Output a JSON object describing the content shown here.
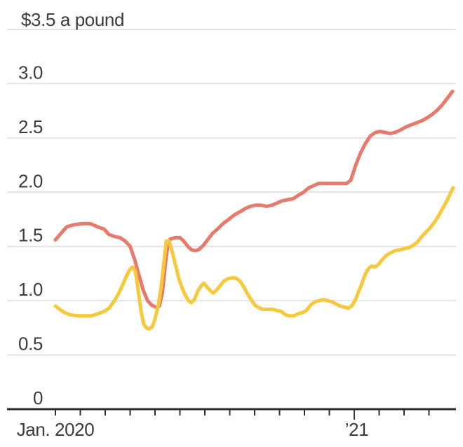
{
  "page": {
    "background": "#FFFFFF"
  },
  "colors": {
    "red_line": "#E8796B",
    "yellow_line": "#F6C93C",
    "gridline": "#E4E4E4",
    "axis": "#2D2D2D",
    "text": "#3C3C3C"
  },
  "chart_data": {
    "type": "line",
    "unit_label": "$3.5 a pound",
    "y_axis": {
      "top_label": "$3.5 a pound",
      "grid_values": [
        3.5,
        3.0,
        2.5,
        2.0,
        1.5,
        1.0,
        0.5
      ],
      "tick_values": [
        3.0,
        2.5,
        2.0,
        1.5,
        1.0,
        0.5,
        0
      ],
      "tick_labels": [
        "3.0",
        "2.5",
        "2.0",
        "1.5",
        "1.0",
        "0.5",
        "0"
      ],
      "ylim": [
        0,
        3.5
      ]
    },
    "x_axis": {
      "unit": "months since Jan. 2020",
      "tick_months": [
        0,
        1,
        2,
        3,
        4,
        5,
        6,
        7,
        8,
        9,
        10,
        11,
        12,
        13,
        14,
        15
      ],
      "major_tick_month": 12,
      "labels": [
        {
          "text": "Jan. 2020",
          "month": 0
        },
        {
          "text": "’21",
          "month": 12.1
        }
      ],
      "xlim_months": [
        0,
        16.1
      ]
    },
    "grid": true,
    "legend": "none",
    "series": [
      {
        "name": "Red line",
        "color": "#E8796B",
        "points": [
          [
            0.0,
            1.56
          ],
          [
            0.45,
            1.68
          ],
          [
            0.75,
            1.7
          ],
          [
            1.1,
            1.71
          ],
          [
            1.4,
            1.71
          ],
          [
            1.7,
            1.68
          ],
          [
            1.95,
            1.66
          ],
          [
            2.15,
            1.61
          ],
          [
            2.4,
            1.59
          ],
          [
            2.6,
            1.58
          ],
          [
            2.8,
            1.55
          ],
          [
            3.0,
            1.5
          ],
          [
            3.18,
            1.38
          ],
          [
            3.35,
            1.24
          ],
          [
            3.52,
            1.1
          ],
          [
            3.7,
            1.0
          ],
          [
            3.86,
            0.96
          ],
          [
            4.03,
            0.94
          ],
          [
            4.17,
            0.95
          ],
          [
            4.3,
            1.08
          ],
          [
            4.42,
            1.35
          ],
          [
            4.52,
            1.52
          ],
          [
            4.62,
            1.57
          ],
          [
            4.82,
            1.58
          ],
          [
            5.0,
            1.58
          ],
          [
            5.15,
            1.55
          ],
          [
            5.32,
            1.5
          ],
          [
            5.46,
            1.47
          ],
          [
            5.61,
            1.46
          ],
          [
            5.75,
            1.47
          ],
          [
            5.94,
            1.51
          ],
          [
            6.14,
            1.57
          ],
          [
            6.31,
            1.62
          ],
          [
            6.51,
            1.66
          ],
          [
            6.73,
            1.71
          ],
          [
            6.96,
            1.75
          ],
          [
            7.18,
            1.79
          ],
          [
            7.41,
            1.82
          ],
          [
            7.63,
            1.85
          ],
          [
            7.83,
            1.87
          ],
          [
            8.03,
            1.88
          ],
          [
            8.25,
            1.88
          ],
          [
            8.48,
            1.87
          ],
          [
            8.7,
            1.88
          ],
          [
            8.9,
            1.9
          ],
          [
            9.1,
            1.92
          ],
          [
            9.32,
            1.93
          ],
          [
            9.55,
            1.94
          ],
          [
            9.75,
            1.97
          ],
          [
            9.97,
            2.0
          ],
          [
            10.17,
            2.04
          ],
          [
            10.37,
            2.06
          ],
          [
            10.56,
            2.08
          ],
          [
            10.8,
            2.08
          ],
          [
            11.0,
            2.08
          ],
          [
            11.24,
            2.08
          ],
          [
            11.46,
            2.08
          ],
          [
            11.69,
            2.08
          ],
          [
            11.86,
            2.11
          ],
          [
            12.06,
            2.25
          ],
          [
            12.25,
            2.36
          ],
          [
            12.45,
            2.45
          ],
          [
            12.65,
            2.52
          ],
          [
            12.85,
            2.55
          ],
          [
            13.04,
            2.56
          ],
          [
            13.24,
            2.55
          ],
          [
            13.44,
            2.54
          ],
          [
            13.63,
            2.55
          ],
          [
            13.83,
            2.57
          ],
          [
            14.06,
            2.6
          ],
          [
            14.28,
            2.62
          ],
          [
            14.51,
            2.64
          ],
          [
            14.73,
            2.66
          ],
          [
            14.96,
            2.69
          ],
          [
            15.15,
            2.72
          ],
          [
            15.35,
            2.76
          ],
          [
            15.55,
            2.81
          ],
          [
            15.75,
            2.87
          ],
          [
            15.95,
            2.93
          ]
        ]
      },
      {
        "name": "Yellow line",
        "color": "#F6C93C",
        "points": [
          [
            0.0,
            0.95
          ],
          [
            0.17,
            0.92
          ],
          [
            0.37,
            0.89
          ],
          [
            0.6,
            0.87
          ],
          [
            0.9,
            0.86
          ],
          [
            1.15,
            0.86
          ],
          [
            1.45,
            0.86
          ],
          [
            1.72,
            0.88
          ],
          [
            1.95,
            0.9
          ],
          [
            2.15,
            0.93
          ],
          [
            2.31,
            0.98
          ],
          [
            2.48,
            1.04
          ],
          [
            2.65,
            1.12
          ],
          [
            2.82,
            1.21
          ],
          [
            3.0,
            1.29
          ],
          [
            3.1,
            1.31
          ],
          [
            3.21,
            1.27
          ],
          [
            3.32,
            1.1
          ],
          [
            3.44,
            0.9
          ],
          [
            3.55,
            0.78
          ],
          [
            3.66,
            0.75
          ],
          [
            3.77,
            0.74
          ],
          [
            3.89,
            0.76
          ],
          [
            4.0,
            0.83
          ],
          [
            4.14,
            0.97
          ],
          [
            4.25,
            1.14
          ],
          [
            4.37,
            1.38
          ],
          [
            4.45,
            1.55
          ],
          [
            4.56,
            1.55
          ],
          [
            4.68,
            1.46
          ],
          [
            4.82,
            1.33
          ],
          [
            4.96,
            1.2
          ],
          [
            5.1,
            1.11
          ],
          [
            5.24,
            1.04
          ],
          [
            5.35,
            1.0
          ],
          [
            5.46,
            0.98
          ],
          [
            5.58,
            1.01
          ],
          [
            5.72,
            1.09
          ],
          [
            5.86,
            1.14
          ],
          [
            5.97,
            1.16
          ],
          [
            6.11,
            1.12
          ],
          [
            6.23,
            1.09
          ],
          [
            6.34,
            1.07
          ],
          [
            6.48,
            1.1
          ],
          [
            6.62,
            1.14
          ],
          [
            6.76,
            1.18
          ],
          [
            6.9,
            1.2
          ],
          [
            7.07,
            1.21
          ],
          [
            7.24,
            1.21
          ],
          [
            7.41,
            1.18
          ],
          [
            7.58,
            1.12
          ],
          [
            7.72,
            1.06
          ],
          [
            7.86,
            1.01
          ],
          [
            8.0,
            0.96
          ],
          [
            8.14,
            0.94
          ],
          [
            8.31,
            0.92
          ],
          [
            8.51,
            0.92
          ],
          [
            8.7,
            0.92
          ],
          [
            8.9,
            0.91
          ],
          [
            9.07,
            0.9
          ],
          [
            9.24,
            0.87
          ],
          [
            9.41,
            0.86
          ],
          [
            9.58,
            0.86
          ],
          [
            9.75,
            0.88
          ],
          [
            9.92,
            0.89
          ],
          [
            10.08,
            0.91
          ],
          [
            10.25,
            0.96
          ],
          [
            10.42,
            0.99
          ],
          [
            10.59,
            1.0
          ],
          [
            10.76,
            1.01
          ],
          [
            10.93,
            1.0
          ],
          [
            11.1,
            0.99
          ],
          [
            11.27,
            0.97
          ],
          [
            11.44,
            0.95
          ],
          [
            11.61,
            0.94
          ],
          [
            11.75,
            0.93
          ],
          [
            11.89,
            0.95
          ],
          [
            12.03,
            1.0
          ],
          [
            12.17,
            1.08
          ],
          [
            12.31,
            1.16
          ],
          [
            12.45,
            1.25
          ],
          [
            12.59,
            1.3
          ],
          [
            12.7,
            1.32
          ],
          [
            12.82,
            1.31
          ],
          [
            12.96,
            1.33
          ],
          [
            13.13,
            1.38
          ],
          [
            13.3,
            1.42
          ],
          [
            13.46,
            1.44
          ],
          [
            13.63,
            1.46
          ],
          [
            13.83,
            1.47
          ],
          [
            14.03,
            1.48
          ],
          [
            14.2,
            1.49
          ],
          [
            14.37,
            1.51
          ],
          [
            14.54,
            1.54
          ],
          [
            14.7,
            1.59
          ],
          [
            14.87,
            1.63
          ],
          [
            15.04,
            1.67
          ],
          [
            15.21,
            1.72
          ],
          [
            15.38,
            1.78
          ],
          [
            15.55,
            1.85
          ],
          [
            15.72,
            1.92
          ],
          [
            15.86,
            1.99
          ],
          [
            15.97,
            2.04
          ]
        ]
      }
    ]
  }
}
